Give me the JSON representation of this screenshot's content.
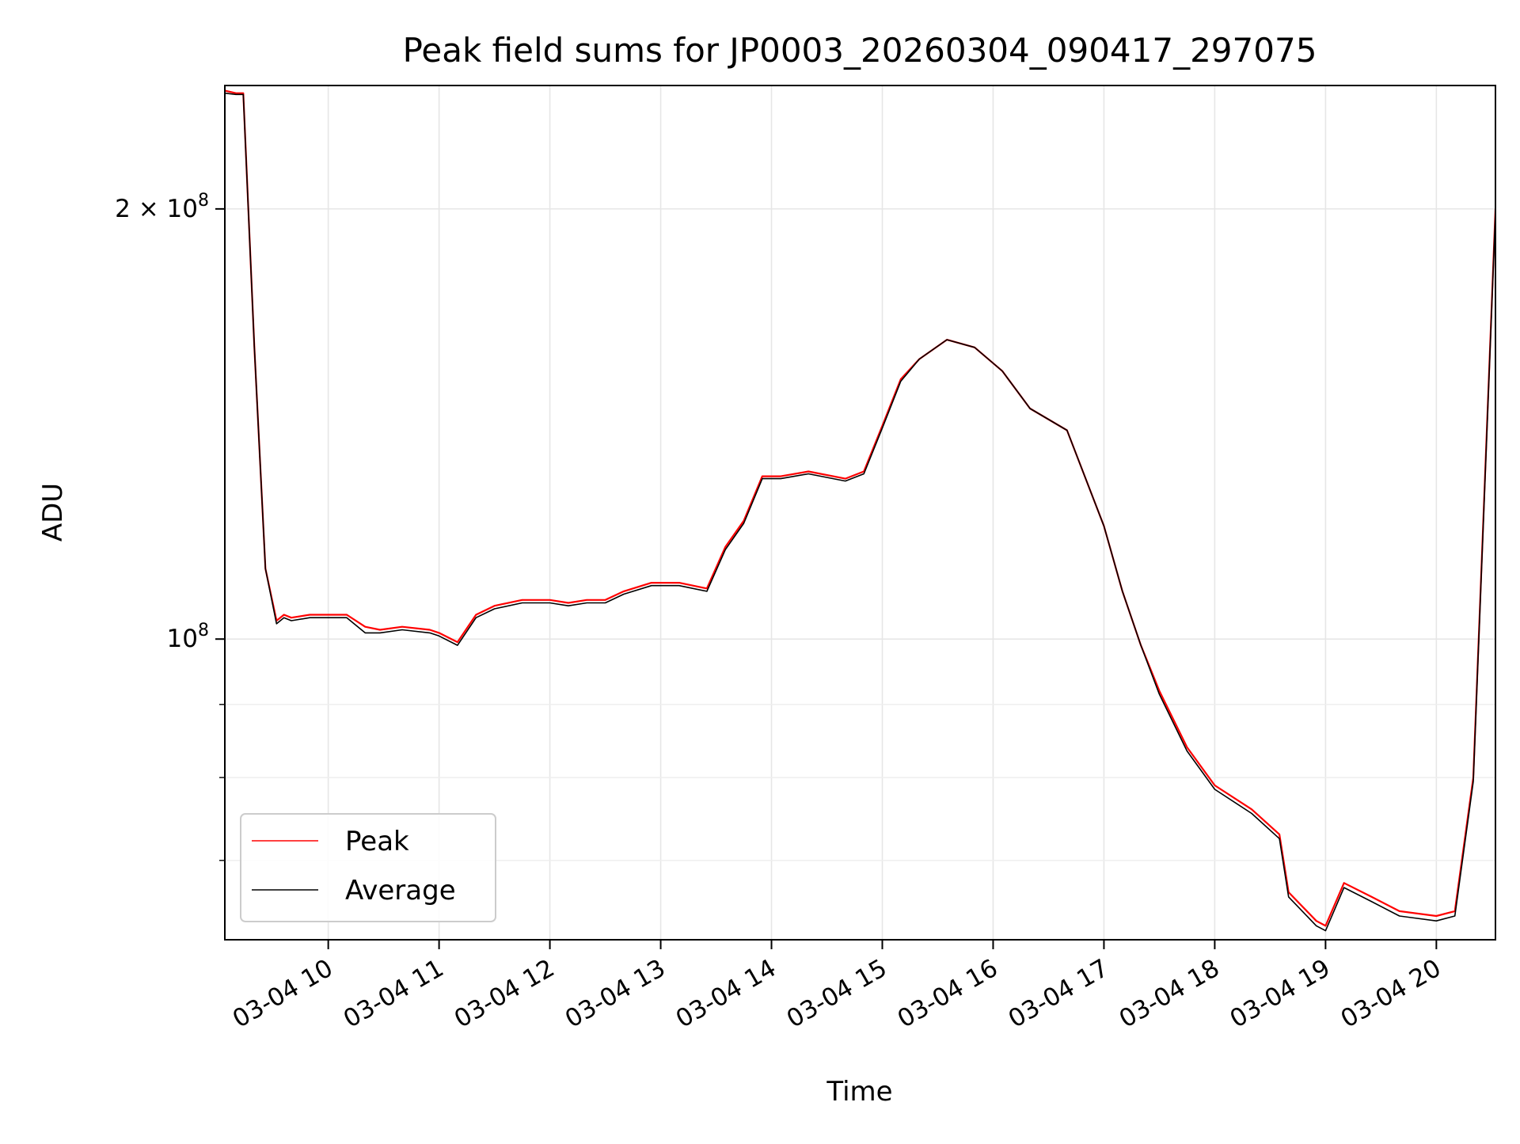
{
  "chart_data": {
    "type": "line",
    "title": "Peak field sums for JP0003_20260304_090417_297075",
    "xlabel": "Time",
    "ylabel": "ADU",
    "yscale": "log",
    "grid": true,
    "legend_position": "lower-left",
    "xlim": [
      "2026-03-04 09:04",
      "2026-03-04 20:32"
    ],
    "ylim": [
      61600000,
      244000000
    ],
    "x_ticks": [
      {
        "value": "2026-03-04 10:00",
        "label": "03-04 10"
      },
      {
        "value": "2026-03-04 11:00",
        "label": "03-04 11"
      },
      {
        "value": "2026-03-04 12:00",
        "label": "03-04 12"
      },
      {
        "value": "2026-03-04 13:00",
        "label": "03-04 13"
      },
      {
        "value": "2026-03-04 14:00",
        "label": "03-04 14"
      },
      {
        "value": "2026-03-04 15:00",
        "label": "03-04 15"
      },
      {
        "value": "2026-03-04 16:00",
        "label": "03-04 16"
      },
      {
        "value": "2026-03-04 17:00",
        "label": "03-04 17"
      },
      {
        "value": "2026-03-04 18:00",
        "label": "03-04 18"
      },
      {
        "value": "2026-03-04 19:00",
        "label": "03-04 19"
      },
      {
        "value": "2026-03-04 20:00",
        "label": "03-04 20"
      }
    ],
    "y_major_ticks": [
      {
        "value": 100000000,
        "base": "10",
        "exp": "8",
        "coef": ""
      },
      {
        "value": 200000000,
        "base": "10",
        "exp": "8",
        "coef": "2"
      }
    ],
    "y_minor_ticks": [
      70000000,
      80000000,
      90000000
    ],
    "x": [
      "2026-03-04 09:04",
      "2026-03-04 09:10",
      "2026-03-04 09:14",
      "2026-03-04 09:20",
      "2026-03-04 09:26",
      "2026-03-04 09:32",
      "2026-03-04 09:36",
      "2026-03-04 09:40",
      "2026-03-04 09:50",
      "2026-03-04 10:00",
      "2026-03-04 10:10",
      "2026-03-04 10:20",
      "2026-03-04 10:28",
      "2026-03-04 10:40",
      "2026-03-04 10:55",
      "2026-03-04 11:00",
      "2026-03-04 11:10",
      "2026-03-04 11:20",
      "2026-03-04 11:30",
      "2026-03-04 11:45",
      "2026-03-04 12:00",
      "2026-03-04 12:10",
      "2026-03-04 12:20",
      "2026-03-04 12:30",
      "2026-03-04 12:40",
      "2026-03-04 12:55",
      "2026-03-04 13:10",
      "2026-03-04 13:25",
      "2026-03-04 13:35",
      "2026-03-04 13:45",
      "2026-03-04 13:55",
      "2026-03-04 14:05",
      "2026-03-04 14:20",
      "2026-03-04 14:40",
      "2026-03-04 14:50",
      "2026-03-04 15:00",
      "2026-03-04 15:10",
      "2026-03-04 15:20",
      "2026-03-04 15:35",
      "2026-03-04 15:50",
      "2026-03-04 16:05",
      "2026-03-04 16:20",
      "2026-03-04 16:40",
      "2026-03-04 17:00",
      "2026-03-04 17:10",
      "2026-03-04 17:20",
      "2026-03-04 17:30",
      "2026-03-04 17:45",
      "2026-03-04 18:00",
      "2026-03-04 18:20",
      "2026-03-04 18:35",
      "2026-03-04 18:40",
      "2026-03-04 18:55",
      "2026-03-04 19:00",
      "2026-03-04 19:10",
      "2026-03-04 19:25",
      "2026-03-04 19:40",
      "2026-03-04 20:00",
      "2026-03-04 20:10",
      "2026-03-04 20:20",
      "2026-03-04 20:32"
    ],
    "series": [
      {
        "name": "Peak",
        "color": "#ff0000",
        "values": [
          242000000,
          241000000,
          241000000,
          160000000,
          112000000,
          103000000,
          104000000,
          103500000,
          104000000,
          104000000,
          104000000,
          102000000,
          101500000,
          102000000,
          101500000,
          101000000,
          99500000,
          104000000,
          105500000,
          106500000,
          106500000,
          106000000,
          106500000,
          106500000,
          108000000,
          109500000,
          109500000,
          108500000,
          116000000,
          121000000,
          130000000,
          130000000,
          131000000,
          129500000,
          131000000,
          141000000,
          152000000,
          157000000,
          162000000,
          160000000,
          154000000,
          145000000,
          140000000,
          120000000,
          108000000,
          99000000,
          92000000,
          84000000,
          79000000,
          76000000,
          73000000,
          66500000,
          63500000,
          63000000,
          67500000,
          66000000,
          64500000,
          64000000,
          64500000,
          80000000,
          200000000
        ]
      },
      {
        "name": "Average",
        "color": "#000000",
        "values": [
          241000000,
          240500000,
          240500000,
          160000000,
          112000000,
          102500000,
          103500000,
          103000000,
          103500000,
          103500000,
          103500000,
          101000000,
          101000000,
          101500000,
          101000000,
          100500000,
          99000000,
          103500000,
          105000000,
          106000000,
          106000000,
          105500000,
          106000000,
          106000000,
          107500000,
          109000000,
          109000000,
          108000000,
          115500000,
          120500000,
          129500000,
          129500000,
          130500000,
          129000000,
          130500000,
          140500000,
          151500000,
          157000000,
          162000000,
          160000000,
          154000000,
          145000000,
          140000000,
          120000000,
          108000000,
          99000000,
          91500000,
          83500000,
          78500000,
          75500000,
          72500000,
          66000000,
          63000000,
          62500000,
          67000000,
          65500000,
          64000000,
          63500000,
          64000000,
          79500000,
          199000000
        ]
      }
    ]
  }
}
